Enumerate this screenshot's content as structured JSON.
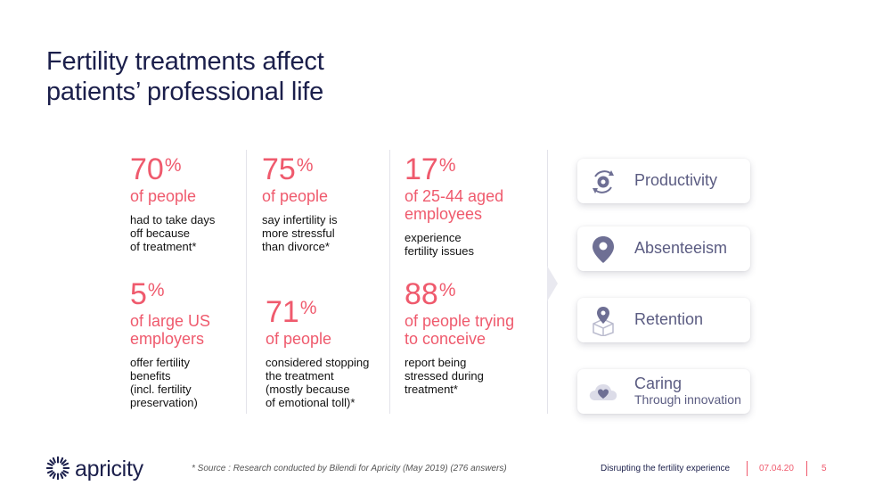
{
  "title": {
    "line1": "Fertility treatments affect",
    "line2": "patients’ professional life"
  },
  "stats": [
    {
      "num": "70",
      "pct": "%",
      "sub": "of people",
      "desc": [
        "had to take days",
        "off because",
        "of treatment*"
      ]
    },
    {
      "num": "75",
      "pct": "%",
      "sub": "of people",
      "desc": [
        "say infertility is",
        "more stressful",
        "than divorce*"
      ]
    },
    {
      "num": "17",
      "pct": "%",
      "sub": [
        "of 25-44 aged",
        "employees"
      ],
      "desc": [
        "experience",
        "fertility issues"
      ]
    },
    {
      "num": "5",
      "pct": "%",
      "sub": [
        "of large US",
        "employers"
      ],
      "desc": [
        "offer fertility",
        "benefits",
        "(incl. fertility",
        "preservation)"
      ]
    },
    {
      "num": "71",
      "pct": "%",
      "sub": "of people",
      "desc": [
        "considered stopping",
        "the treatment",
        "(mostly because",
        "of emotional toll)*"
      ]
    },
    {
      "num": "88",
      "pct": "%",
      "sub": [
        "of people trying",
        "to conceive"
      ],
      "desc": [
        "report being",
        "stressed during",
        "treatment*"
      ]
    }
  ],
  "cards": [
    {
      "label": "Productivity",
      "icon": "gear-cycle-icon"
    },
    {
      "label": "Absenteeism",
      "icon": "location-pin-icon"
    },
    {
      "label": "Retention",
      "icon": "pin-box-icon"
    },
    {
      "label": "Caring",
      "sublabel": "Through innovation",
      "icon": "cloud-heart-icon"
    }
  ],
  "footer": {
    "brand": "apricity",
    "source": "* Source : Research conducted by Bilendi for Apricity (May 2019)   (276 answers)",
    "tagline": "Disrupting the fertility experience",
    "date": "07.04.20",
    "page": "5"
  },
  "colors": {
    "accent": "#ef5a6d",
    "navy": "#1b1f4b",
    "icon": "#6e6f94"
  }
}
